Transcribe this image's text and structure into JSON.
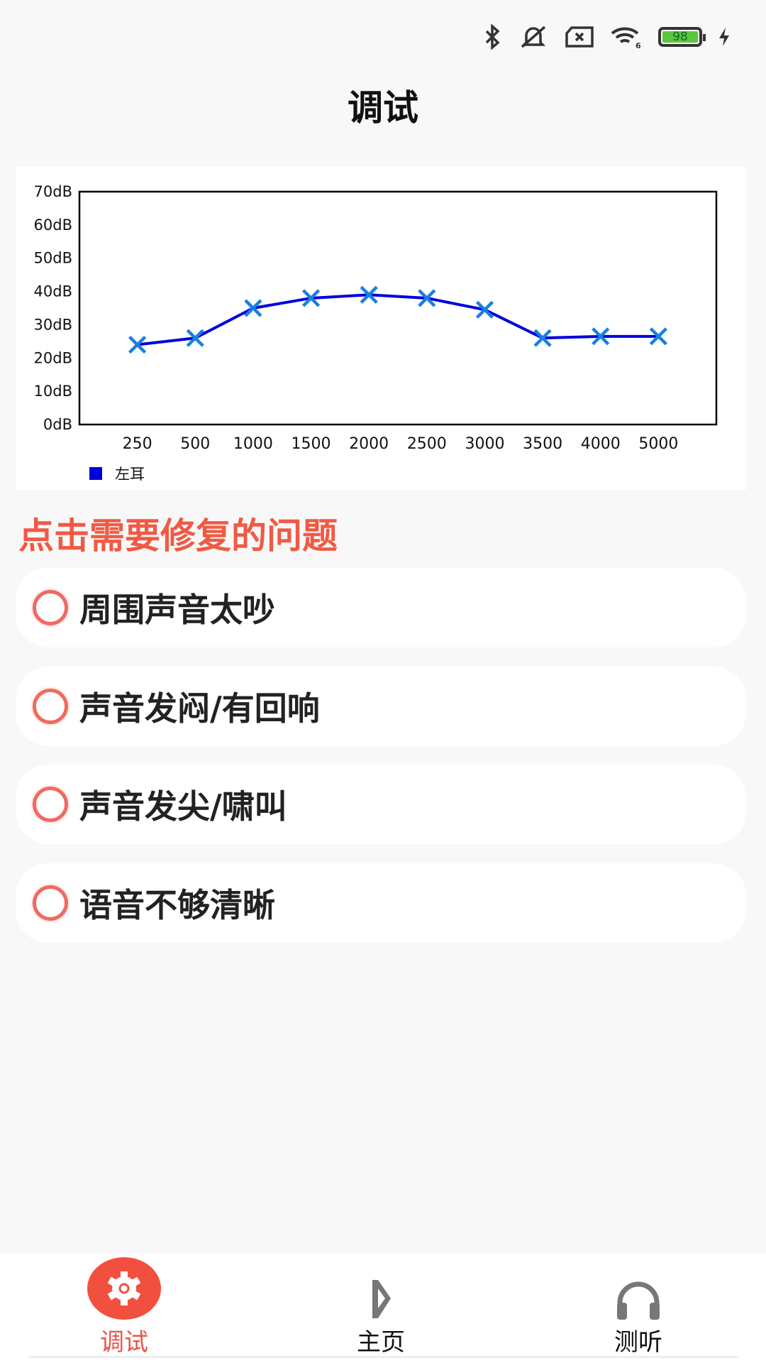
{
  "status_bar": {
    "battery": "98",
    "icons": [
      "bluetooth-icon",
      "mute-bell-icon",
      "no-sim-icon",
      "wifi-6-icon",
      "battery-icon",
      "charging-icon"
    ]
  },
  "header": {
    "title": "调试"
  },
  "chart_data": {
    "type": "line",
    "categories": [
      "250",
      "500",
      "1000",
      "1500",
      "2000",
      "2500",
      "3000",
      "3500",
      "4000",
      "5000"
    ],
    "yticks": [
      "0dB",
      "10dB",
      "20dB",
      "30dB",
      "40dB",
      "50dB",
      "60dB",
      "70dB"
    ],
    "ylim": [
      0,
      70
    ],
    "series": [
      {
        "name": "左耳",
        "values": [
          24,
          26,
          35,
          38,
          39,
          38,
          34.5,
          26,
          26.5,
          26.5
        ],
        "color": "#0000dd",
        "marker": "x",
        "marker_color": "#1a7fe0"
      }
    ],
    "legend": "bottom-left",
    "grid": false
  },
  "section": {
    "heading": "点击需要修复的问题"
  },
  "options": [
    {
      "label": "周围声音太吵"
    },
    {
      "label": "声音发闷/有回响"
    },
    {
      "label": "声音发尖/啸叫"
    },
    {
      "label": "语音不够清晰"
    }
  ],
  "nav": {
    "tabs": [
      {
        "label": "调试",
        "active": true,
        "icon": "gear-icon"
      },
      {
        "label": "主页",
        "active": false,
        "icon": "home-logo-icon"
      },
      {
        "label": "测听",
        "active": false,
        "icon": "headphones-icon"
      }
    ]
  },
  "colors": {
    "accent": "#f05a45",
    "series": "#0000dd"
  }
}
